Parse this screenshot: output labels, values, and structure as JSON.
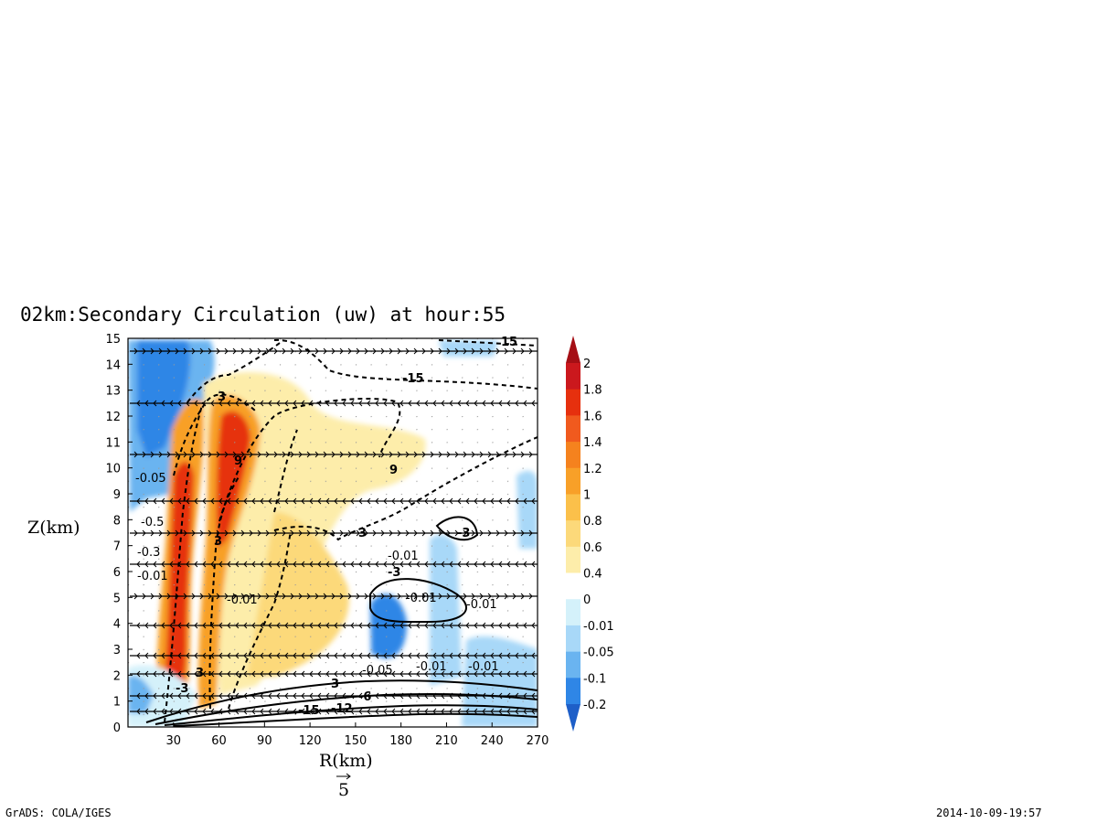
{
  "chart_data": {
    "type": "heatmap",
    "title": "02km:Secondary Circulation (uw) at hour:55",
    "xlabel": "R(km)",
    "ylabel": "Z(km)",
    "xlim": [
      0,
      270
    ],
    "ylim": [
      0,
      15
    ],
    "x_ticks": [
      "30",
      "60",
      "90",
      "120",
      "150",
      "180",
      "210",
      "240",
      "270"
    ],
    "y_ticks": [
      "0",
      "1",
      "2",
      "3",
      "4",
      "5",
      "6",
      "7",
      "8",
      "9",
      "10",
      "11",
      "12",
      "13",
      "14",
      "15"
    ],
    "grid": true,
    "vector_reference_label": "5",
    "colorbar": {
      "position": "right",
      "labels": [
        "2",
        "1.8",
        "1.6",
        "1.4",
        "1.2",
        "1",
        "0.8",
        "0.6",
        "0.4",
        "0",
        "-0.01",
        "-0.05",
        "-0.1",
        "-0.2"
      ],
      "colors": [
        "#a50f15",
        "#cb181d",
        "#e6300e",
        "#f05a1e",
        "#f5821e",
        "#f8a028",
        "#fbc04a",
        "#fcd97a",
        "#fdedaa",
        "#ffffff",
        "#d4f1fa",
        "#a8d8f8",
        "#6ab4f0",
        "#2f86e6",
        "#1e5fc8"
      ]
    },
    "contours": {
      "u_labels": [
        "15",
        "-15",
        "3",
        "9",
        "3",
        "3",
        "3",
        "-3",
        "-3",
        "9",
        "3",
        "-3",
        "-6",
        "-15",
        "-12"
      ],
      "w_labels": [
        "-0.05",
        "-0.5",
        "-0.3",
        "-0.01",
        "-0.01",
        "-0.01",
        "-0.01",
        "-0.01",
        "-0.05",
        "-0.01",
        "-0.01"
      ]
    }
  },
  "footer": {
    "left": "GrADS: COLA/IGES",
    "right": "2014-10-09-19:57"
  },
  "colors": {
    "warm": "#f8a028",
    "cool": "#6ab4f0",
    "frame": "#000000"
  }
}
